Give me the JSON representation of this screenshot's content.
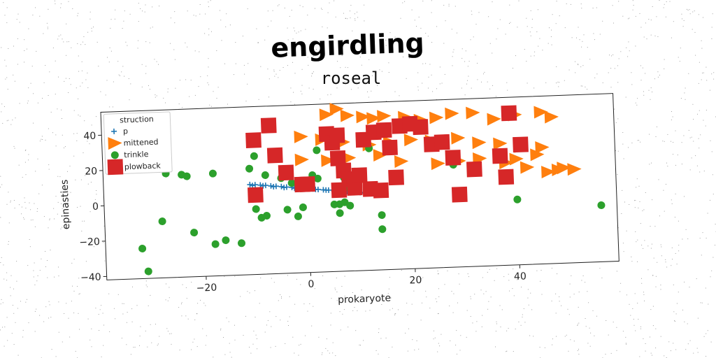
{
  "chart_data": {
    "type": "scatter",
    "title": "engirdling",
    "subtitle": "roseal",
    "xlabel": "prokaryote",
    "ylabel": "epinasties",
    "xlim": [
      -39,
      59
    ],
    "ylim": [
      -42,
      53
    ],
    "xticks": [
      -20,
      0,
      20,
      40
    ],
    "yticks": [
      -40,
      -20,
      0,
      20,
      40
    ],
    "grid": false,
    "legend": {
      "title": "struction",
      "position": "top-left"
    },
    "colors": {
      "p": "#1f77b4",
      "mittened": "#ff7f0e",
      "trinkle": "#2ca02c",
      "plowback": "#d62728"
    },
    "series": [
      {
        "name": "p",
        "marker": "plus",
        "points": [
          [
            -11,
            9
          ],
          [
            -10,
            8.8
          ],
          [
            -9,
            8.5
          ],
          [
            -8,
            8.2
          ],
          [
            -7,
            7.8
          ],
          [
            -6,
            7.5
          ],
          [
            -5,
            7.2
          ],
          [
            -4,
            6.8
          ],
          [
            -3,
            6.5
          ],
          [
            -2,
            6.2
          ],
          [
            -1,
            5.8
          ],
          [
            0,
            5.5
          ],
          [
            1,
            5.2
          ],
          [
            2,
            4.8
          ],
          [
            3,
            4.5
          ],
          [
            4,
            4.2
          ],
          [
            5,
            3.8
          ],
          [
            6,
            3.5
          ],
          [
            7,
            3.2
          ],
          [
            8,
            2.8
          ],
          [
            9,
            2.5
          ],
          [
            10,
            2.2
          ],
          [
            11,
            1.8
          ],
          [
            12,
            1.5
          ],
          [
            -10.5,
            8.4
          ],
          [
            -8.5,
            8.0
          ],
          [
            -6.5,
            7.3
          ],
          [
            -4.5,
            6.6
          ],
          [
            -2.5,
            6.0
          ],
          [
            -0.5,
            5.6
          ],
          [
            1.5,
            4.9
          ],
          [
            3.5,
            4.3
          ],
          [
            5.5,
            3.6
          ],
          [
            7.5,
            3.0
          ],
          [
            9.5,
            2.4
          ],
          [
            11.5,
            1.7
          ]
        ]
      },
      {
        "name": "mittened",
        "marker": "triangle-right",
        "points": [
          [
            4,
            47
          ],
          [
            6,
            50
          ],
          [
            8,
            46
          ],
          [
            11,
            45
          ],
          [
            13,
            44
          ],
          [
            15,
            45
          ],
          [
            19,
            44
          ],
          [
            22,
            42
          ],
          [
            25,
            43
          ],
          [
            28,
            45
          ],
          [
            32,
            45
          ],
          [
            36,
            41
          ],
          [
            40,
            43
          ],
          [
            45,
            44
          ],
          [
            47,
            41
          ],
          [
            -1,
            35
          ],
          [
            3,
            33
          ],
          [
            7,
            31
          ],
          [
            12,
            29
          ],
          [
            16,
            30
          ],
          [
            20,
            31
          ],
          [
            24,
            30
          ],
          [
            29,
            31
          ],
          [
            33,
            28
          ],
          [
            37,
            27
          ],
          [
            41,
            25
          ],
          [
            45,
            24
          ],
          [
            -1,
            22
          ],
          [
            4,
            21
          ],
          [
            8,
            22
          ],
          [
            14,
            23
          ],
          [
            18,
            19
          ],
          [
            25,
            17
          ],
          [
            29,
            18
          ],
          [
            33,
            19
          ],
          [
            38,
            16
          ],
          [
            42,
            13
          ],
          [
            46,
            10
          ],
          [
            48,
            11
          ],
          [
            49,
            12
          ],
          [
            51,
            11
          ],
          [
            40,
            18
          ],
          [
            44,
            20
          ]
        ]
      },
      {
        "name": "trinkle",
        "marker": "circle",
        "points": [
          [
            -35,
            26
          ],
          [
            -27,
            17
          ],
          [
            -24,
            16
          ],
          [
            -23,
            15
          ],
          [
            -18,
            16
          ],
          [
            -11,
            18
          ],
          [
            -10,
            25
          ],
          [
            -8,
            14
          ],
          [
            -5,
            12
          ],
          [
            -3,
            9
          ],
          [
            -1,
            10
          ],
          [
            1,
            13
          ],
          [
            2,
            11
          ],
          [
            2,
            27
          ],
          [
            7,
            11
          ],
          [
            8,
            5
          ],
          [
            12,
            27
          ],
          [
            -10,
            -5
          ],
          [
            -9,
            -10
          ],
          [
            -8,
            -9
          ],
          [
            -4,
            -6
          ],
          [
            -2,
            -10
          ],
          [
            -1,
            -5
          ],
          [
            5,
            -4
          ],
          [
            6,
            -4
          ],
          [
            7,
            -3
          ],
          [
            8,
            -5
          ],
          [
            6,
            -9
          ],
          [
            14,
            -11
          ],
          [
            14,
            -19
          ],
          [
            -28,
            -10
          ],
          [
            -22,
            -17
          ],
          [
            -18,
            -24
          ],
          [
            -16,
            -22
          ],
          [
            -13,
            -24
          ],
          [
            -32,
            -25
          ],
          [
            -31,
            -38
          ],
          [
            28,
            16
          ],
          [
            40,
            -5
          ],
          [
            56,
            -10
          ]
        ]
      },
      {
        "name": "plowback",
        "marker": "square",
        "points": [
          [
            -10,
            34
          ],
          [
            -7,
            42
          ],
          [
            -6,
            25
          ],
          [
            -4,
            15
          ],
          [
            -1,
            8
          ],
          [
            0,
            8
          ],
          [
            -10,
            3
          ],
          [
            4,
            36
          ],
          [
            5,
            31
          ],
          [
            6,
            35
          ],
          [
            6,
            22
          ],
          [
            7,
            15
          ],
          [
            8,
            10
          ],
          [
            6,
            4
          ],
          [
            9,
            5
          ],
          [
            10,
            12
          ],
          [
            11,
            32
          ],
          [
            12,
            4
          ],
          [
            13,
            36
          ],
          [
            14,
            3
          ],
          [
            15,
            37
          ],
          [
            17,
            10
          ],
          [
            16,
            27
          ],
          [
            18,
            39
          ],
          [
            20,
            40
          ],
          [
            24,
            28
          ],
          [
            28,
            20
          ],
          [
            32,
            13
          ],
          [
            37,
            20
          ],
          [
            39,
            44
          ],
          [
            41,
            26
          ],
          [
            26,
            29
          ],
          [
            22,
            38
          ],
          [
            38,
            8
          ],
          [
            29,
            -1
          ]
        ]
      }
    ]
  }
}
